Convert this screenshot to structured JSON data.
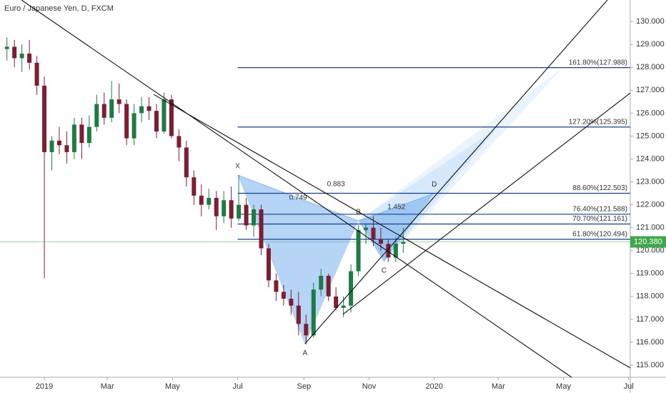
{
  "chart_data": {
    "type": "candlestick",
    "title": "Euro / Japanese Yen, D, FXCM",
    "x": [
      -35,
      -28,
      -21,
      -14,
      -7,
      0,
      7,
      14,
      21,
      28,
      35,
      42,
      49,
      56,
      63,
      70,
      77,
      84,
      91,
      98,
      105,
      112,
      119,
      126,
      133,
      140,
      147,
      154,
      161,
      168,
      175,
      182,
      189,
      196,
      203,
      210,
      217,
      224,
      231,
      238,
      245,
      252,
      259,
      266,
      273,
      280,
      287,
      294,
      301,
      308,
      315,
      322,
      329,
      336
    ],
    "open": [
      128.8,
      128.9,
      128.4,
      128.6,
      128.2,
      127.2,
      124.3,
      124.8,
      124.6,
      124.3,
      125.5,
      124.7,
      125.4,
      126.4,
      125.8,
      126.6,
      126.4,
      124.9,
      126.0,
      126.3,
      126.1,
      125.2,
      126.6,
      125.0,
      124.5,
      123.2,
      122.4,
      122.0,
      122.3,
      121.5,
      122.2,
      121.4,
      122.0,
      121.1,
      121.8,
      120.1,
      118.7,
      118.2,
      117.9,
      117.6,
      116.8,
      116.3,
      118.3,
      118.9,
      118.0,
      117.5,
      117.6,
      119.1,
      120.9,
      121.0,
      120.5,
      120.3,
      119.7,
      120.3
    ],
    "high": [
      129.3,
      129.2,
      129.0,
      129.2,
      128.5,
      127.6,
      125.0,
      125.4,
      125.2,
      125.8,
      125.8,
      125.9,
      126.8,
      126.9,
      127.4,
      127.3,
      126.6,
      126.4,
      126.7,
      126.7,
      126.4,
      126.9,
      126.8,
      125.3,
      124.8,
      123.5,
      122.9,
      122.7,
      122.6,
      122.6,
      122.8,
      123.3,
      122.3,
      122.0,
      122.0,
      120.3,
      119.0,
      118.5,
      118.3,
      118.2,
      117.2,
      118.6,
      119.2,
      119.0,
      118.4,
      118.0,
      119.4,
      121.1,
      121.2,
      121.5,
      121.0,
      120.5,
      120.6,
      121.0
    ],
    "low": [
      128.3,
      128.0,
      127.8,
      127.9,
      126.8,
      118.8,
      123.5,
      124.2,
      123.8,
      124.0,
      124.0,
      124.5,
      125.2,
      125.5,
      125.6,
      126.0,
      124.6,
      124.6,
      125.6,
      125.7,
      124.9,
      125.1,
      124.9,
      123.9,
      122.8,
      122.0,
      121.5,
      121.8,
      120.9,
      121.2,
      121.0,
      121.3,
      120.9,
      120.6,
      119.8,
      118.4,
      117.8,
      117.6,
      117.2,
      116.3,
      115.9,
      116.2,
      118.0,
      117.8,
      117.4,
      117.1,
      117.3,
      118.9,
      120.3,
      120.2,
      120.0,
      119.5,
      119.5,
      119.9
    ],
    "close": [
      128.9,
      128.4,
      128.6,
      128.2,
      127.2,
      124.3,
      124.8,
      124.6,
      124.3,
      125.5,
      124.7,
      125.4,
      126.4,
      125.8,
      126.6,
      126.4,
      124.9,
      126.0,
      126.3,
      126.1,
      125.2,
      126.6,
      125.0,
      124.5,
      123.2,
      122.4,
      122.0,
      122.3,
      121.5,
      122.2,
      121.4,
      122.0,
      121.1,
      121.8,
      120.1,
      118.7,
      118.2,
      117.9,
      117.6,
      116.8,
      116.3,
      118.3,
      118.9,
      118.0,
      117.5,
      117.6,
      119.1,
      120.9,
      121.0,
      120.5,
      120.3,
      119.7,
      120.3,
      120.38
    ],
    "up_color": "#1f7a45",
    "down_color": "#7d1d33",
    "xlim": [
      -41.5,
      548.5
    ],
    "xticks": [
      {
        "value": 0,
        "label": "2019"
      },
      {
        "value": 59,
        "label": "Mar"
      },
      {
        "value": 120,
        "label": "May"
      },
      {
        "value": 181,
        "label": "Jul"
      },
      {
        "value": 243,
        "label": "Sep"
      },
      {
        "value": 304,
        "label": "Nov"
      },
      {
        "value": 365,
        "label": "2020"
      },
      {
        "value": 425,
        "label": "Mar"
      },
      {
        "value": 486,
        "label": "May"
      },
      {
        "value": 547,
        "label": "Jul"
      }
    ],
    "ylim": [
      114.47,
      130.94
    ],
    "yticks": [
      {
        "value": 115,
        "label": "115.000"
      },
      {
        "value": 116,
        "label": "116.000"
      },
      {
        "value": 117,
        "label": "117.000"
      },
      {
        "value": 118,
        "label": "118.000"
      },
      {
        "value": 119,
        "label": "119.000"
      },
      {
        "value": 120,
        "label": "120.000"
      },
      {
        "value": 121,
        "label": "121.000"
      },
      {
        "value": 122,
        "label": "122.000"
      },
      {
        "value": 123,
        "label": "123.000"
      },
      {
        "value": 124,
        "label": "124.000"
      },
      {
        "value": 125,
        "label": "125.000"
      },
      {
        "value": 126,
        "label": "126.000"
      },
      {
        "value": 127,
        "label": "127.000"
      },
      {
        "value": 128,
        "label": "128.000"
      },
      {
        "value": 129,
        "label": "129.000"
      },
      {
        "value": 130,
        "label": "130.000"
      }
    ],
    "last_price": {
      "value": 120.38,
      "label": "120.380"
    },
    "fib_levels": [
      {
        "value": 127.988,
        "label": "161.80%(127.988)"
      },
      {
        "value": 125.395,
        "label": "127.20%(125.395)"
      },
      {
        "value": 122.503,
        "label": "88.60%(122.503)"
      },
      {
        "value": 121.588,
        "label": "76.40%(121.588)"
      },
      {
        "value": 121.161,
        "label": "70.70%(121.161)"
      },
      {
        "value": 120.494,
        "label": "61.80%(120.494)"
      }
    ],
    "fib_color": "#1a3e8f",
    "pattern_points": [
      {
        "label": "X",
        "x": 181,
        "y": 123.3
      },
      {
        "label": "A",
        "x": 244,
        "y": 115.9
      },
      {
        "label": "B",
        "x": 294,
        "y": 121.3
      },
      {
        "label": "C",
        "x": 318,
        "y": 119.5
      },
      {
        "label": "D",
        "x": 365,
        "y": 122.5
      }
    ],
    "ratios": [
      {
        "label": "0.749",
        "from": 0,
        "to": 2
      },
      {
        "label": "0.883",
        "from": 0,
        "to": 4
      },
      {
        "label": "1.452",
        "from": 2,
        "to": 4
      }
    ],
    "trendlines": [
      {
        "x": [
          -21.4,
          493.6
        ],
        "y": [
          130.94,
          114.47
        ]
      },
      {
        "x": [
          102.3,
          548.5
        ],
        "y": [
          126.82,
          114.88
        ]
      },
      {
        "x": [
          244.1,
          527.1
        ],
        "y": [
          115.94,
          130.94
        ]
      },
      {
        "x": [
          279.6,
          548.5
        ],
        "y": [
          117.22,
          126.88
        ]
      }
    ]
  }
}
